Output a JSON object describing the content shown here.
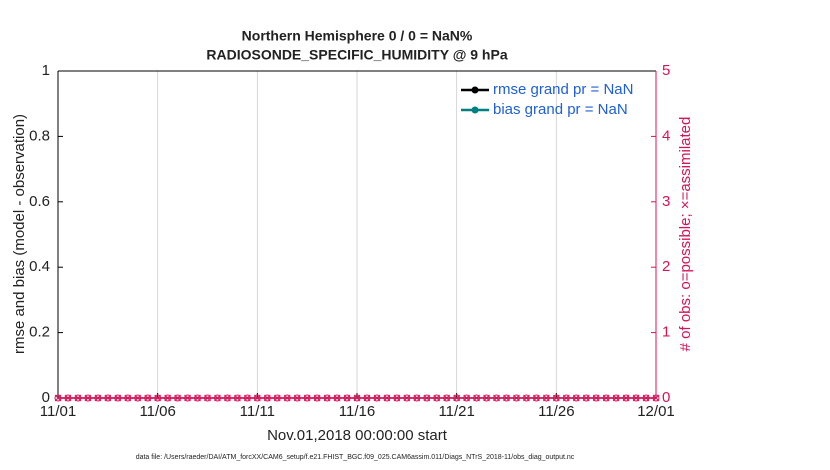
{
  "chart_data": {
    "type": "line",
    "title": "Northern Hemisphere 0 / 0 = NaN%",
    "subtitle": "RADIOSONDE_SPECIFIC_HUMIDITY @ 9 hPa",
    "xlabel": "Nov.01,2018 00:00:00 start",
    "ylabel": "rmse and bias (model - observation)",
    "y2label": "# of obs: o=possible; ×=assimilated",
    "footnote": "data file: /Users/raeder/DAI/ATM_forcXX/CAM6_setup/f.e21.FHIST_BGC.f09_025.CAM6assim.011/Diags_NTrS_2018-11/obs_diag_output.nc",
    "x": [
      0,
      0.5,
      1,
      1.5,
      2,
      2.5,
      3,
      3.5,
      4,
      4.5,
      5,
      5.5,
      6,
      6.5,
      7,
      7.5,
      8,
      8.5,
      9,
      9.5,
      10,
      10.5,
      11,
      11.5,
      12,
      12.5,
      13,
      13.5,
      14,
      14.5,
      15,
      15.5,
      16,
      16.5,
      17,
      17.5,
      18,
      18.5,
      19,
      19.5,
      20,
      20.5,
      21,
      21.5,
      22,
      22.5,
      23,
      23.5,
      24,
      24.5,
      25,
      25.5,
      26,
      26.5,
      27,
      27.5,
      28,
      28.5,
      29,
      29.5,
      30
    ],
    "xlim": [
      0,
      30
    ],
    "xticks": [
      {
        "value": 0,
        "label": "11/01"
      },
      {
        "value": 5,
        "label": "11/06"
      },
      {
        "value": 10,
        "label": "11/11"
      },
      {
        "value": 15,
        "label": "11/16"
      },
      {
        "value": 20,
        "label": "11/21"
      },
      {
        "value": 25,
        "label": "11/26"
      },
      {
        "value": 30,
        "label": "12/01"
      }
    ],
    "ylim": [
      0,
      1
    ],
    "yticks": [
      0,
      0.2,
      0.4,
      0.6,
      0.8,
      1
    ],
    "y2lim": [
      0,
      5
    ],
    "y2ticks": [
      0,
      1,
      2,
      3,
      4,
      5
    ],
    "y2color": "#d4145a",
    "grid": "x",
    "legend": "upper right",
    "series": [
      {
        "name": "rmse grand pr = NaN",
        "color": "#000000",
        "marker": "dot",
        "legend": true,
        "values": [
          null,
          null,
          null,
          null,
          null,
          null,
          null,
          null,
          null,
          null,
          null,
          null,
          null,
          null,
          null,
          null,
          null,
          null,
          null,
          null,
          null,
          null,
          null,
          null,
          null,
          null,
          null,
          null,
          null,
          null,
          null,
          null,
          null,
          null,
          null,
          null,
          null,
          null,
          null,
          null,
          null,
          null,
          null,
          null,
          null,
          null,
          null,
          null,
          null,
          null,
          null,
          null,
          null,
          null,
          null,
          null,
          null,
          null,
          null,
          null,
          null
        ]
      },
      {
        "name": "bias grand pr = NaN",
        "color": "#008080",
        "marker": "dot",
        "legend": true,
        "values": [
          null,
          null,
          null,
          null,
          null,
          null,
          null,
          null,
          null,
          null,
          null,
          null,
          null,
          null,
          null,
          null,
          null,
          null,
          null,
          null,
          null,
          null,
          null,
          null,
          null,
          null,
          null,
          null,
          null,
          null,
          null,
          null,
          null,
          null,
          null,
          null,
          null,
          null,
          null,
          null,
          null,
          null,
          null,
          null,
          null,
          null,
          null,
          null,
          null,
          null,
          null,
          null,
          null,
          null,
          null,
          null,
          null,
          null,
          null,
          null,
          null
        ]
      },
      {
        "color": "#d4145a",
        "marker": "circle",
        "axis": "y2",
        "legend": false,
        "values": [
          0,
          0,
          0,
          0,
          0,
          0,
          0,
          0,
          0,
          0,
          0,
          0,
          0,
          0,
          0,
          0,
          0,
          0,
          0,
          0,
          0,
          0,
          0,
          0,
          0,
          0,
          0,
          0,
          0,
          0,
          0,
          0,
          0,
          0,
          0,
          0,
          0,
          0,
          0,
          0,
          0,
          0,
          0,
          0,
          0,
          0,
          0,
          0,
          0,
          0,
          0,
          0,
          0,
          0,
          0,
          0,
          0,
          0,
          0,
          0,
          0
        ]
      },
      {
        "color": "#d4145a",
        "marker": "cross",
        "axis": "y2",
        "legend": false,
        "values": [
          0,
          0,
          0,
          0,
          0,
          0,
          0,
          0,
          0,
          0,
          0,
          0,
          0,
          0,
          0,
          0,
          0,
          0,
          0,
          0,
          0,
          0,
          0,
          0,
          0,
          0,
          0,
          0,
          0,
          0,
          0,
          0,
          0,
          0,
          0,
          0,
          0,
          0,
          0,
          0,
          0,
          0,
          0,
          0,
          0,
          0,
          0,
          0,
          0,
          0,
          0,
          0,
          0,
          0,
          0,
          0,
          0,
          0,
          0,
          0,
          0
        ]
      }
    ]
  }
}
